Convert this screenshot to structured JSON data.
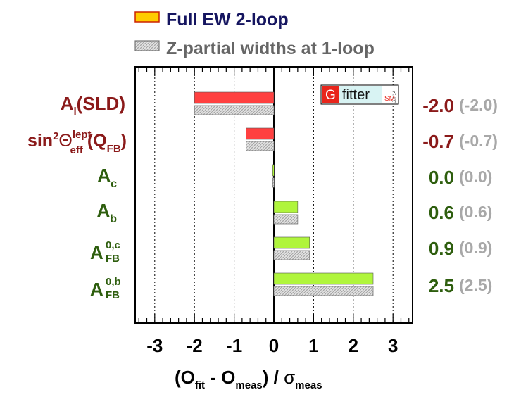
{
  "legend": {
    "items": [
      {
        "label": "Full EW 2-loop",
        "color": "#ffcc00"
      },
      {
        "label": "Z-partial widths at 1-loop",
        "color": "#dddddd"
      }
    ]
  },
  "logo": {
    "letter": "G",
    "word": "fitter",
    "tag": "SM",
    "date": "Jul '14"
  },
  "xaxis": {
    "ticks": [
      "-3",
      "-2",
      "-1",
      "0",
      "1",
      "2",
      "3"
    ],
    "label_parts": {
      "open": "(O",
      "fit": "fit",
      "minus": " - O",
      "meas": "meas",
      "close": ") /  ",
      "sigma": "σ",
      "sigma_sub": "meas"
    }
  },
  "colors": {
    "red_bar": "#ff4040",
    "green_bar": "#b0f53c",
    "hatch_bar": "#d8d8d8",
    "red_label": "#8b1a1a",
    "green_label": "#2e5e0e",
    "grey_value": "#a8a8a8"
  },
  "chart_data": {
    "type": "bar",
    "orientation": "horizontal",
    "xlim": [
      -4.2,
      4.2
    ],
    "grid": "vertical dotted lines at integer values",
    "categories": [
      {
        "group": "red",
        "parts": {
          "main": "A",
          "sub": "l",
          "rest": "(SLD)"
        }
      },
      {
        "group": "red",
        "parts": {
          "pre": "sin",
          "sup1": "2",
          "theta": "Θ",
          "sub": "eff",
          "sup": "lept",
          "rest": "(Q",
          "sub2": "FB",
          "close": ")"
        }
      },
      {
        "group": "green",
        "parts": {
          "main": "A",
          "sub": "c"
        }
      },
      {
        "group": "green",
        "parts": {
          "main": "A",
          "sub": "b"
        }
      },
      {
        "group": "green",
        "parts": {
          "main": "A",
          "sub": "FB",
          "sup": "0,c"
        }
      },
      {
        "group": "green",
        "parts": {
          "main": "A",
          "sub": "FB",
          "sup": "0,b"
        }
      }
    ],
    "series": [
      {
        "name": "Full EW 2-loop",
        "values": [
          -2.0,
          -0.7,
          -0.03,
          0.6,
          0.9,
          2.5
        ],
        "value_labels": [
          "-2.0",
          "-0.7",
          "0.0",
          "0.6",
          "0.9",
          "2.5"
        ]
      },
      {
        "name": "Z-partial widths at 1-loop",
        "values": [
          -2.0,
          -0.7,
          -0.03,
          0.6,
          0.9,
          2.5
        ],
        "value_labels": [
          "(-2.0)",
          "(-0.7)",
          "(0.0)",
          "(0.6)",
          "(0.9)",
          "(2.5)"
        ]
      }
    ]
  }
}
